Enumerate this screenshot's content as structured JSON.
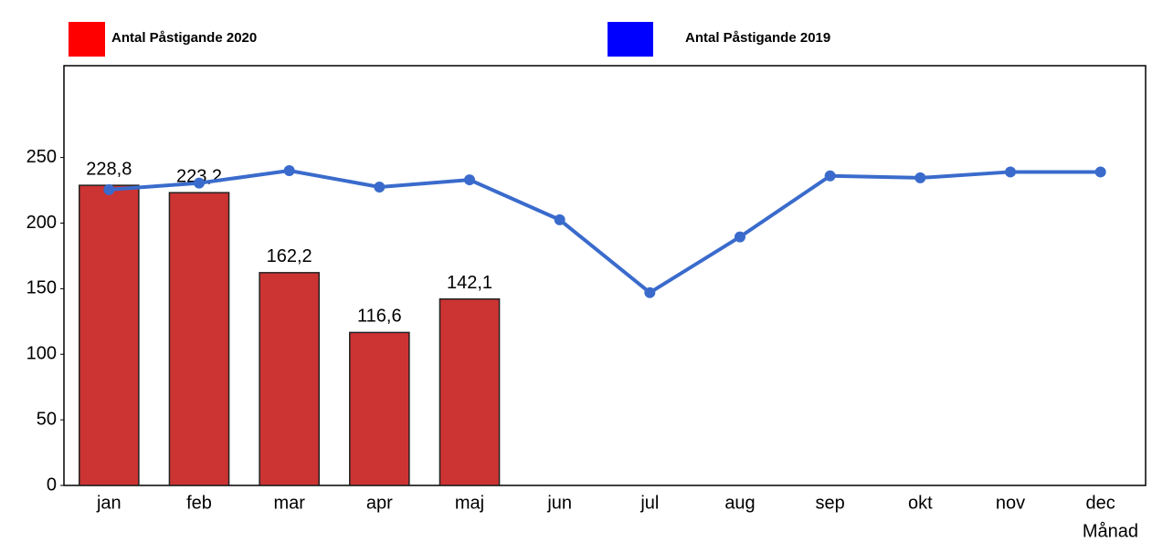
{
  "chart_data": {
    "type": "bar",
    "x_label": "Månad",
    "categories": [
      "jan",
      "feb",
      "mar",
      "apr",
      "maj",
      "jun",
      "jul",
      "aug",
      "sep",
      "okt",
      "nov",
      "dec"
    ],
    "series": [
      {
        "name": "Antal Påstigande 2020",
        "type": "bar",
        "color": "#cc3333",
        "legend_color": "#ff0000",
        "values": [
          228.8,
          223.2,
          162.2,
          116.6,
          142.1,
          null,
          null,
          null,
          null,
          null,
          null,
          null
        ],
        "value_labels": [
          "228,8",
          "223,2",
          "162,2",
          "116,6",
          "142,1",
          null,
          null,
          null,
          null,
          null,
          null,
          null
        ]
      },
      {
        "name": "Antal Påstigande 2019",
        "type": "line",
        "color": "#3a6bcc",
        "legend_color": "#0000ff",
        "values": [
          225.5,
          230.5,
          240,
          227.5,
          233,
          202.5,
          147,
          189.5,
          236,
          234.5,
          239,
          239
        ]
      }
    ],
    "ylim": [
      0,
      320
    ],
    "yticks": [
      0,
      50,
      100,
      150,
      200,
      250
    ],
    "grid": false
  }
}
